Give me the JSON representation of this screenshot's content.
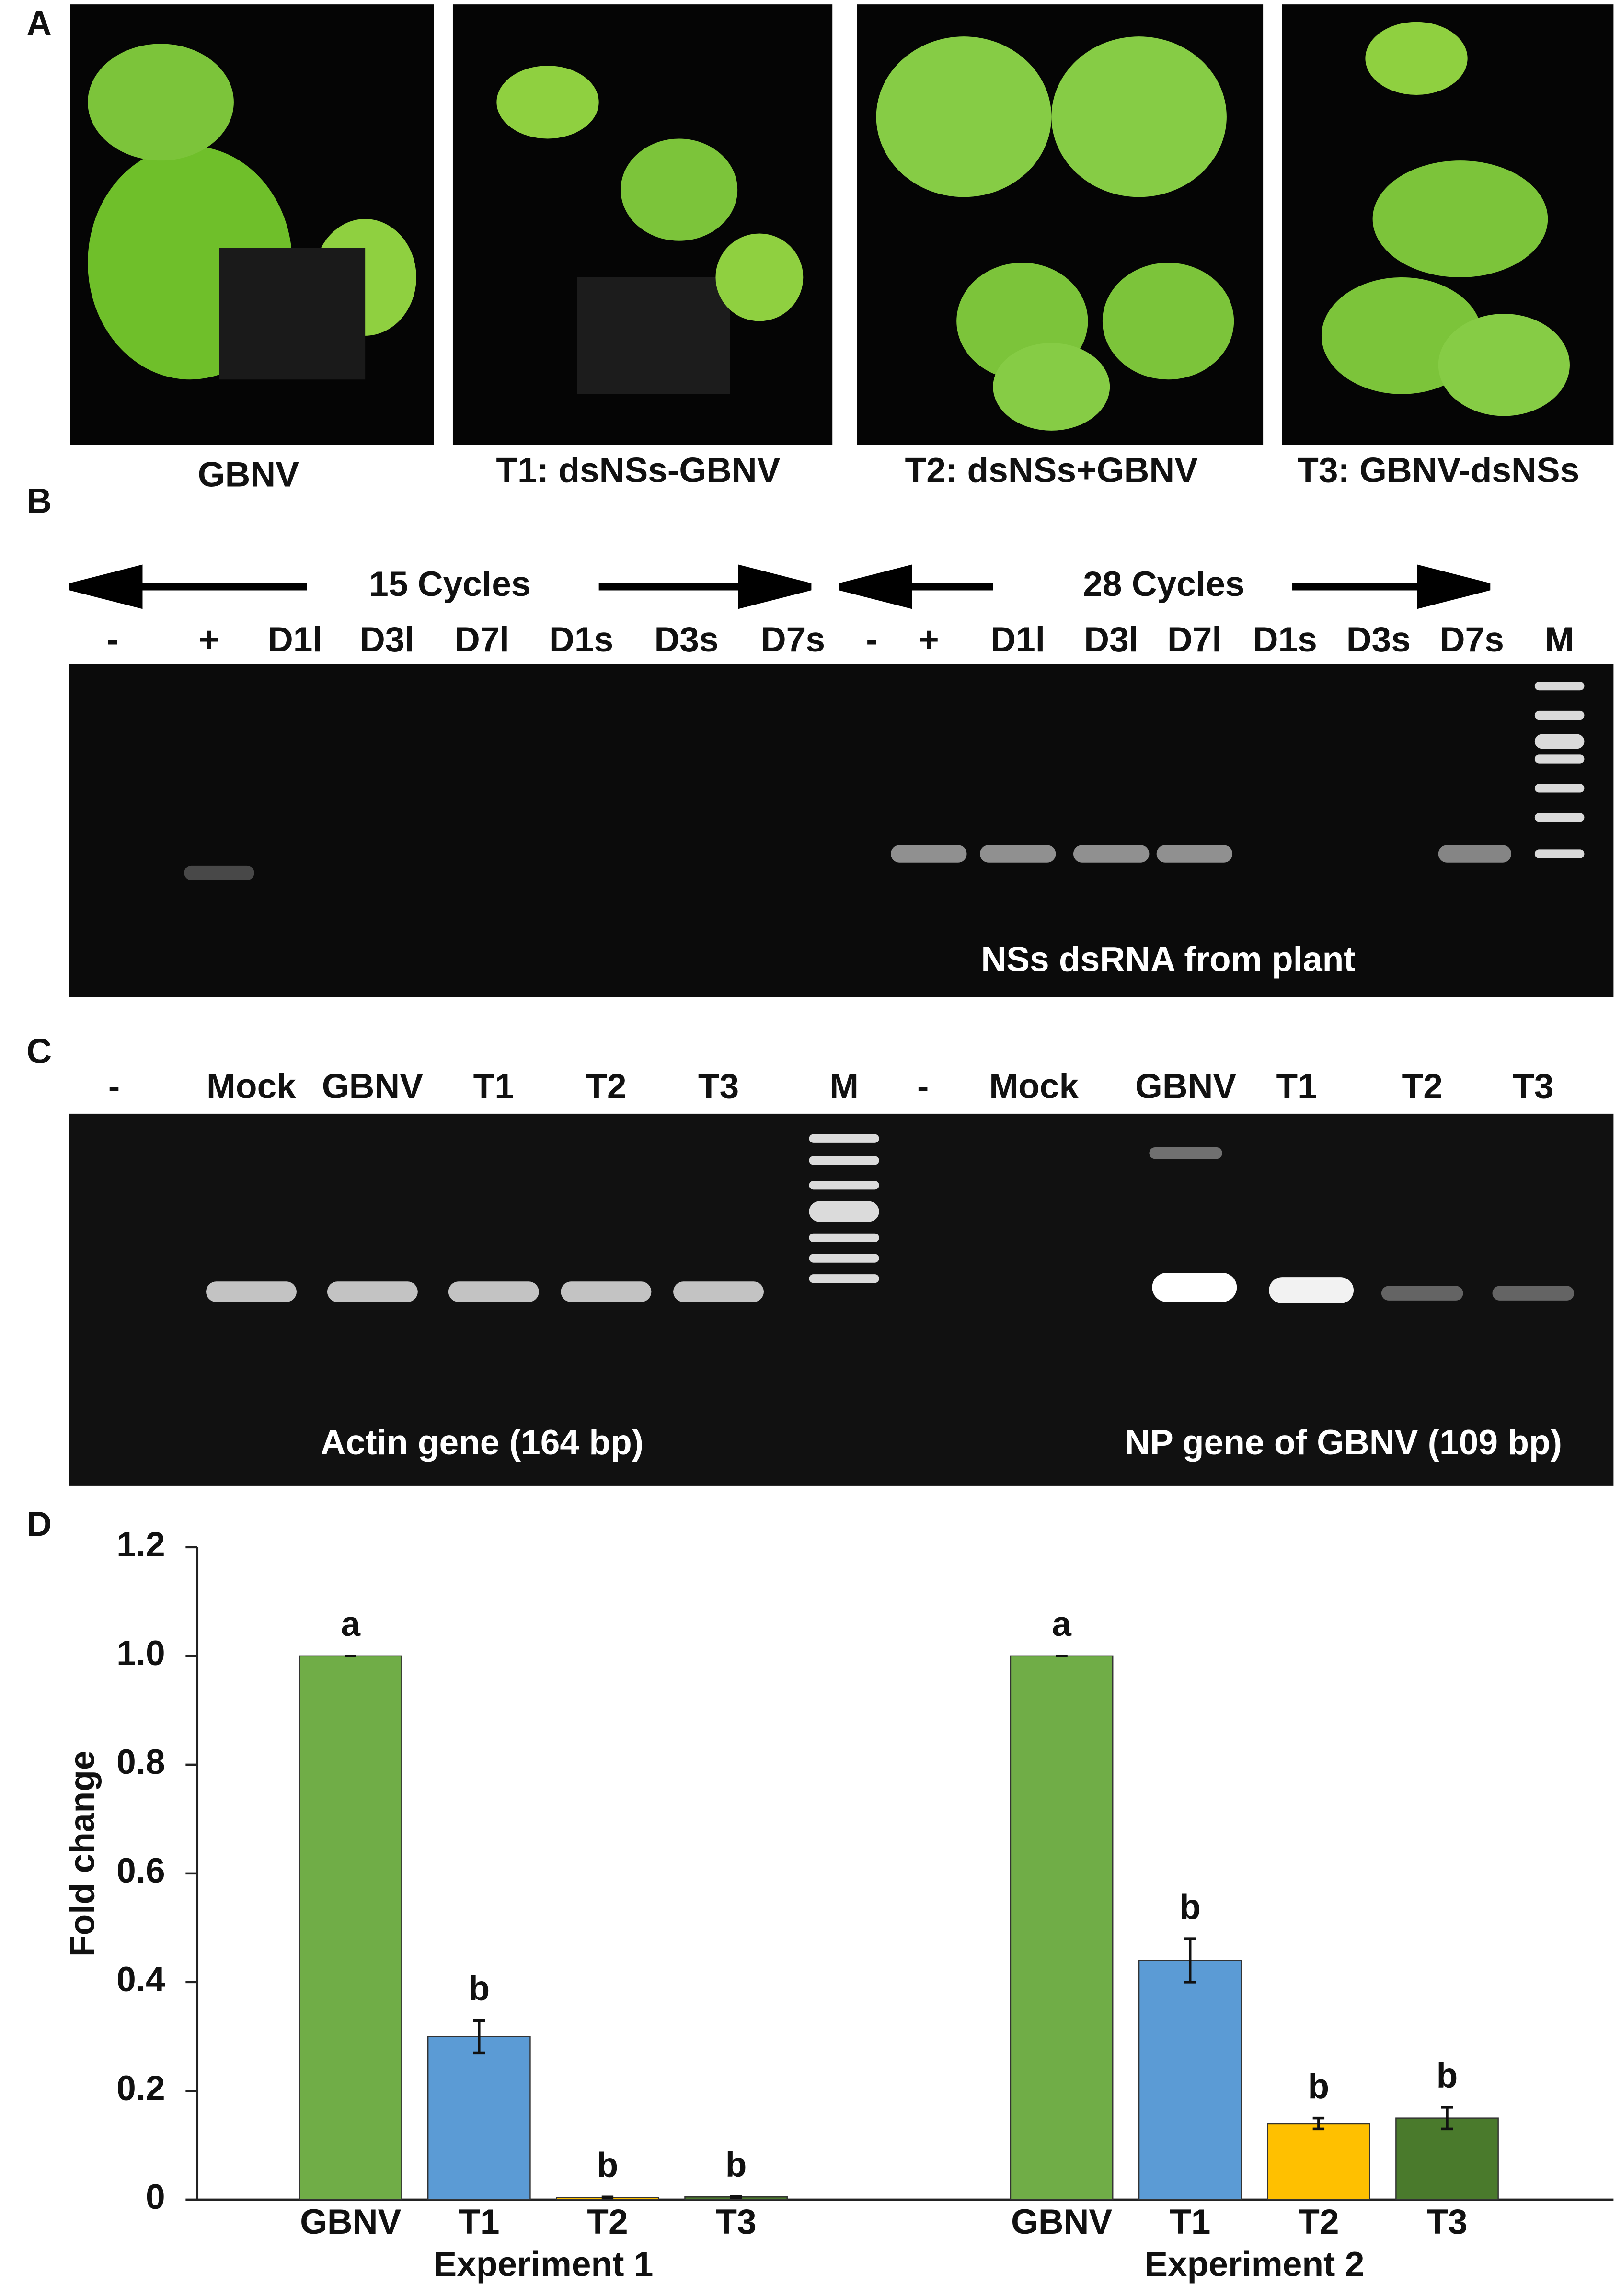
{
  "panels": {
    "A": {
      "label": "A",
      "captions": [
        "GBNV",
        "T1: dsNSs-GBNV",
        "T2: dsNSs+GBNV",
        "T3: GBNV-dsNSs"
      ]
    },
    "B": {
      "label": "B",
      "cycles": [
        "15 Cycles",
        "28 Cycles"
      ],
      "lanes": [
        "-",
        "+",
        "D1l",
        "D3l",
        "D7l",
        "D1s",
        "D3s",
        "D7s",
        "-",
        "+",
        "D1l",
        "D3l",
        "D7l",
        "D1s",
        "D3s",
        "D7s",
        "M"
      ],
      "caption": "NSs dsRNA from plant"
    },
    "C": {
      "label": "C",
      "lanes": [
        "-",
        "Mock",
        "GBNV",
        "T1",
        "T2",
        "T3",
        "M",
        "-",
        "Mock",
        "GBNV",
        "T1",
        "T2",
        "T3"
      ],
      "captions": [
        "Actin gene (164 bp)",
        "NP gene of GBNV (109 bp)"
      ]
    }
  },
  "chart_data": {
    "type": "bar",
    "panel_label": "D",
    "ylabel": "Fold change",
    "ylim": [
      0,
      1.2
    ],
    "yticks": [
      0,
      0.2,
      0.4,
      0.6,
      0.8,
      {
        "value": 1,
        "label": "1.0"
      },
      1.2
    ],
    "groups": [
      {
        "name": "Experiment 1",
        "categories": [
          "GBNV",
          "T1",
          "T2",
          "T3"
        ],
        "values": [
          1,
          0.3,
          0.004,
          0.005
        ],
        "errors": [
          0,
          0.03,
          0.001,
          0.001
        ],
        "colors": [
          "#70ad47",
          "#5b9bd5",
          "#ffc000",
          "#4a7a2c"
        ],
        "letters": [
          "a",
          "b",
          "b",
          "b"
        ]
      },
      {
        "name": "Experiment 2",
        "categories": [
          "GBNV",
          "T1",
          "T2",
          "T3"
        ],
        "values": [
          1,
          0.44,
          0.14,
          0.15
        ],
        "errors": [
          0,
          0.04,
          0.01,
          0.02
        ],
        "colors": [
          "#70ad47",
          "#5b9bd5",
          "#ffc000",
          "#4a7a2c"
        ],
        "letters": [
          "a",
          "b",
          "b",
          "b"
        ]
      }
    ]
  }
}
